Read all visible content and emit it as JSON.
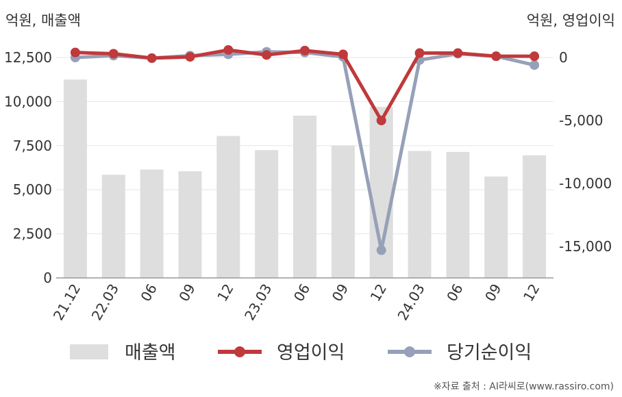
{
  "labels": {
    "left_unit": "억원, 매출액",
    "right_unit": "억원, 영업이익",
    "source": "※자료 출처 : AI라씨로(www.rassiro.com)"
  },
  "colors": {
    "bar": "#dedede",
    "operating_profit": "#c0393b",
    "net_income": "#96a0b8",
    "axis": "#999999",
    "grid": "#e6e6e6",
    "text": "#333333"
  },
  "chart_data": {
    "type": "bar",
    "categories": [
      "21.12",
      "22.03",
      "06",
      "09",
      "12",
      "23.03",
      "06",
      "09",
      "12",
      "24.03",
      "06",
      "09",
      "12"
    ],
    "left_axis": {
      "ylim": [
        0,
        12500
      ],
      "ticks": [
        0,
        2500,
        5000,
        7500,
        10000,
        12500
      ],
      "tick_labels": [
        "0",
        "2,500",
        "5,000",
        "7,500",
        "10,000",
        "12,500"
      ]
    },
    "right_axis": {
      "ylim": [
        -17500,
        0
      ],
      "ticks": [
        0,
        -5000,
        -10000,
        -15000
      ],
      "tick_labels": [
        "0",
        "-5,000",
        "-10,000",
        "-15,000"
      ]
    },
    "series": [
      {
        "name": "매출액",
        "kind": "bar",
        "axis": "left",
        "values": [
          11250,
          5850,
          6150,
          6050,
          8050,
          7250,
          9200,
          7500,
          9700,
          7200,
          7150,
          5750,
          6950
        ]
      },
      {
        "name": "영업이익",
        "kind": "line",
        "axis": "right",
        "values": [
          400,
          300,
          -50,
          50,
          600,
          200,
          550,
          250,
          -5000,
          350,
          350,
          100,
          100
        ]
      },
      {
        "name": "당기순이익",
        "kind": "line",
        "axis": "right",
        "values": [
          0,
          150,
          -50,
          150,
          250,
          450,
          400,
          50,
          -15300,
          -200,
          300,
          100,
          -600
        ]
      }
    ],
    "grid": true,
    "legend_position": "bottom"
  }
}
